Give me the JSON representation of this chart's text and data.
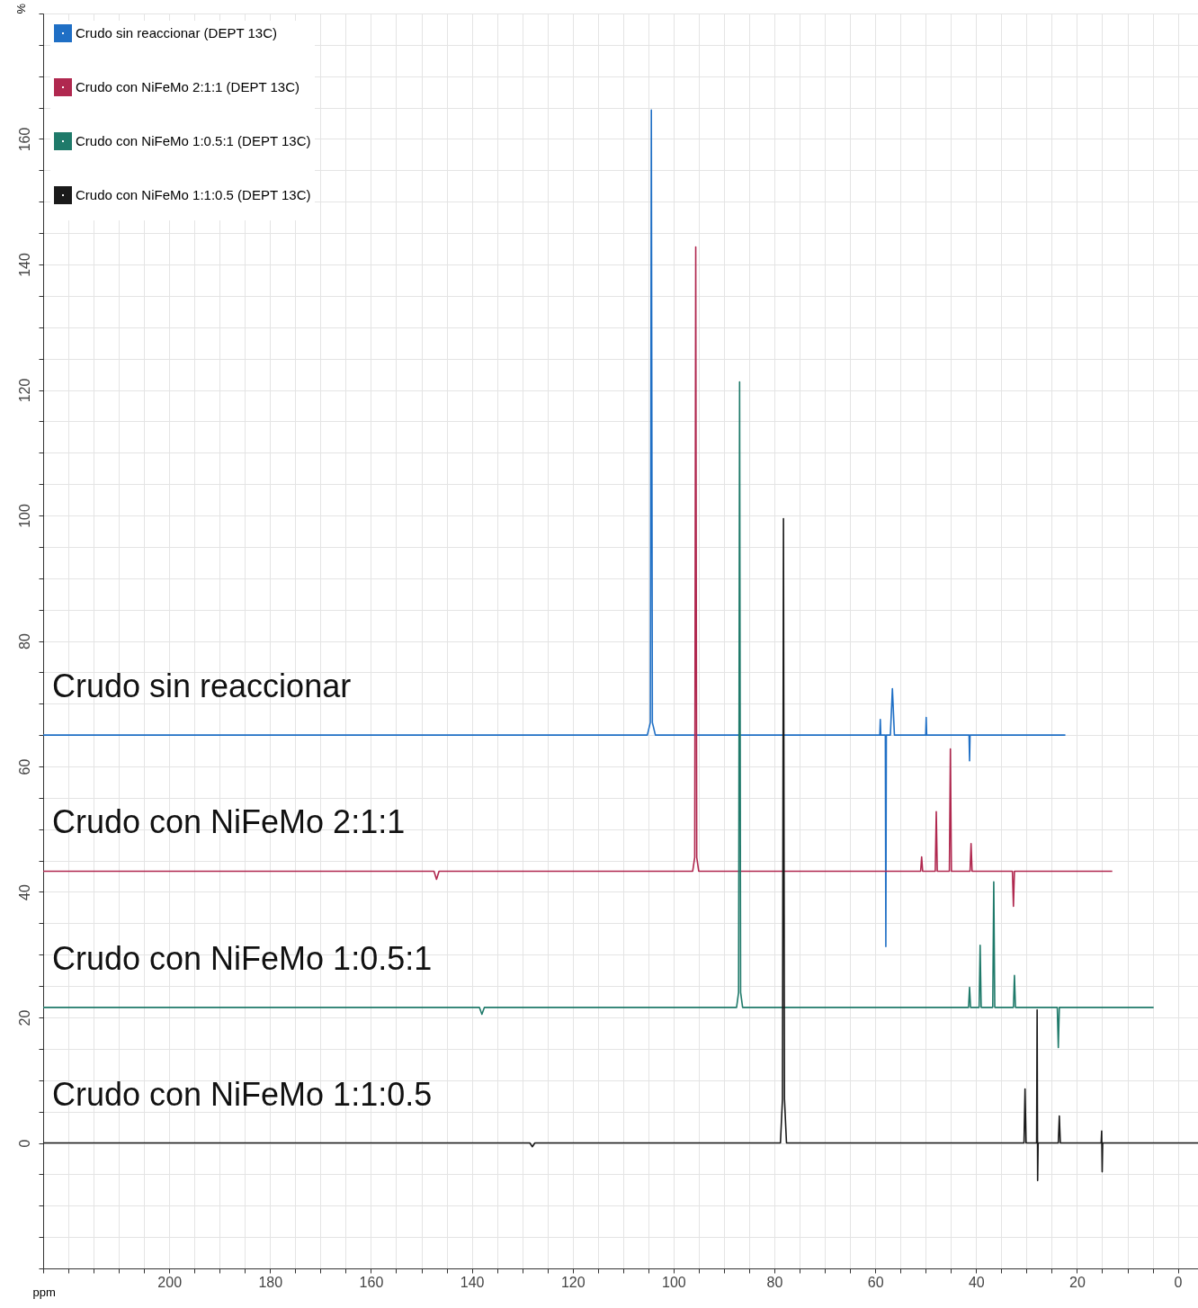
{
  "chart_data": {
    "type": "line",
    "xlabel": "ppm",
    "ylabel": "%",
    "xlim": [
      225,
      -4
    ],
    "ylim": [
      -20,
      180
    ],
    "grid": true,
    "legend": "top left",
    "xticks": [
      {
        "value": 225,
        "label": null
      },
      {
        "value": 220,
        "label": null
      },
      {
        "value": 215,
        "label": null
      },
      {
        "value": 210,
        "label": null
      },
      {
        "value": 205,
        "label": null
      },
      200,
      {
        "value": 195,
        "label": null
      },
      {
        "value": 190,
        "label": null
      },
      {
        "value": 185,
        "label": null
      },
      180,
      {
        "value": 175,
        "label": null
      },
      {
        "value": 170,
        "label": null
      },
      {
        "value": 165,
        "label": null
      },
      160,
      {
        "value": 155,
        "label": null
      },
      {
        "value": 150,
        "label": null
      },
      {
        "value": 145,
        "label": null
      },
      140,
      {
        "value": 135,
        "label": null
      },
      {
        "value": 130,
        "label": null
      },
      {
        "value": 125,
        "label": null
      },
      120,
      {
        "value": 115,
        "label": null
      },
      {
        "value": 110,
        "label": null
      },
      {
        "value": 105,
        "label": null
      },
      100,
      {
        "value": 95,
        "label": null
      },
      {
        "value": 90,
        "label": null
      },
      {
        "value": 85,
        "label": null
      },
      80,
      {
        "value": 75,
        "label": null
      },
      {
        "value": 70,
        "label": null
      },
      {
        "value": 65,
        "label": null
      },
      60,
      {
        "value": 55,
        "label": null
      },
      {
        "value": 50,
        "label": null
      },
      {
        "value": 45,
        "label": null
      },
      40,
      {
        "value": 35,
        "label": null
      },
      {
        "value": 30,
        "label": null
      },
      {
        "value": 25,
        "label": null
      },
      20,
      {
        "value": 15,
        "label": null
      },
      {
        "value": 10,
        "label": null
      },
      {
        "value": 5,
        "label": null
      },
      0
    ],
    "yticks": [
      {
        "value": -20,
        "label": null
      },
      {
        "value": -15,
        "label": null
      },
      {
        "value": -10,
        "label": null
      },
      {
        "value": -5,
        "label": null
      },
      0,
      {
        "value": 5,
        "label": null
      },
      {
        "value": 10,
        "label": null
      },
      {
        "value": 15,
        "label": null
      },
      20,
      {
        "value": 25,
        "label": null
      },
      {
        "value": 30,
        "label": null
      },
      {
        "value": 35,
        "label": null
      },
      40,
      {
        "value": 45,
        "label": null
      },
      {
        "value": 50,
        "label": null
      },
      {
        "value": 55,
        "label": null
      },
      60,
      {
        "value": 65,
        "label": null
      },
      {
        "value": 70,
        "label": null
      },
      {
        "value": 75,
        "label": null
      },
      80,
      {
        "value": 85,
        "label": null
      },
      {
        "value": 90,
        "label": null
      },
      {
        "value": 95,
        "label": null
      },
      100,
      {
        "value": 105,
        "label": null
      },
      {
        "value": 110,
        "label": null
      },
      {
        "value": 115,
        "label": null
      },
      120,
      {
        "value": 125,
        "label": null
      },
      {
        "value": 130,
        "label": null
      },
      {
        "value": 135,
        "label": null
      },
      140,
      {
        "value": 145,
        "label": null
      },
      {
        "value": 150,
        "label": null
      },
      {
        "value": 155,
        "label": null
      },
      160,
      {
        "value": 165,
        "label": null
      },
      {
        "value": 170,
        "label": null
      },
      {
        "value": 175,
        "label": null
      },
      {
        "value": 180,
        "label": null
      }
    ],
    "series": [
      {
        "name": "Crudo sin reaccionar (DEPT 13C)",
        "color": "#1f6fc5",
        "x": [
          225,
          105.2,
          104.6,
          104.4,
          104.2,
          103.6,
          60,
          59.1,
          59,
          58.9,
          58,
          57.9,
          57.8,
          57,
          56.6,
          56.2,
          50,
          49.9,
          49.8,
          41.4,
          41.3,
          41.2,
          22.3
        ],
        "values": [
          65,
          65,
          67,
          164.6,
          67,
          65,
          65,
          65,
          67.5,
          65,
          65,
          31.3,
          65,
          65,
          72.4,
          65,
          65,
          67.8,
          65,
          65,
          60.9,
          65,
          65
        ]
      },
      {
        "name": "Crudo con NiFeMo 2:1:1 (DEPT 13C)",
        "color": "#b0284f",
        "x": [
          225,
          147.5,
          147,
          146.5,
          96.2,
          95.8,
          95.6,
          95.4,
          95,
          51,
          50.8,
          50.6,
          48.1,
          47.9,
          47.7,
          45.3,
          45.1,
          44.9,
          41.2,
          41,
          40.8,
          32.8,
          32.6,
          32.4,
          13
        ],
        "values": [
          43.3,
          43.3,
          42,
          43.3,
          43.3,
          45.5,
          142.8,
          45.5,
          43.3,
          43.3,
          45.6,
          43.3,
          43.3,
          52.8,
          43.3,
          43.3,
          62.8,
          43.3,
          43.3,
          47.7,
          43.3,
          43.3,
          37.7,
          43.3,
          43.3
        ]
      },
      {
        "name": "Crudo con NiFeMo 1:0.5:1 (DEPT 13C)",
        "color": "#1f7a6a",
        "x": [
          225,
          138.5,
          138,
          137.5,
          87.5,
          87.1,
          86.9,
          86.7,
          86.3,
          41.5,
          41.3,
          41.1,
          39.4,
          39.2,
          39,
          36.7,
          36.5,
          36.3,
          32.6,
          32.4,
          32.2,
          23.9,
          23.7,
          23.5,
          4.8
        ],
        "values": [
          21.6,
          21.6,
          20.5,
          21.6,
          21.6,
          24,
          121.3,
          24,
          21.6,
          21.6,
          24.8,
          21.6,
          21.6,
          31.5,
          21.6,
          21.6,
          41.6,
          21.6,
          21.6,
          26.7,
          21.6,
          21.6,
          15.2,
          21.6,
          21.6
        ]
      },
      {
        "name": "Crudo con NiFeMo 1:1:0.5 (DEPT 13C)",
        "color": "#1a1a1a",
        "x": [
          225,
          128.5,
          128,
          127.5,
          78.8,
          78.4,
          78.2,
          78,
          77.6,
          30.5,
          30.3,
          30.1,
          28,
          27.9,
          27.8,
          27.7,
          23.7,
          23.5,
          23.3,
          15.2,
          15.1,
          15,
          14.9,
          -4
        ],
        "values": [
          0,
          0,
          -0.6,
          0,
          0,
          7,
          99.5,
          7,
          0,
          0,
          8.6,
          0,
          0,
          21.2,
          -6,
          0,
          0,
          4.3,
          0,
          0,
          1.9,
          -4.6,
          0,
          0
        ]
      }
    ],
    "annotations": [
      "Crudo sin reaccionar",
      "Crudo con NiFeMo 2:1:1",
      "Crudo con NiFeMo 1:0.5:1",
      "Crudo con NiFeMo 1:1:0.5"
    ]
  }
}
